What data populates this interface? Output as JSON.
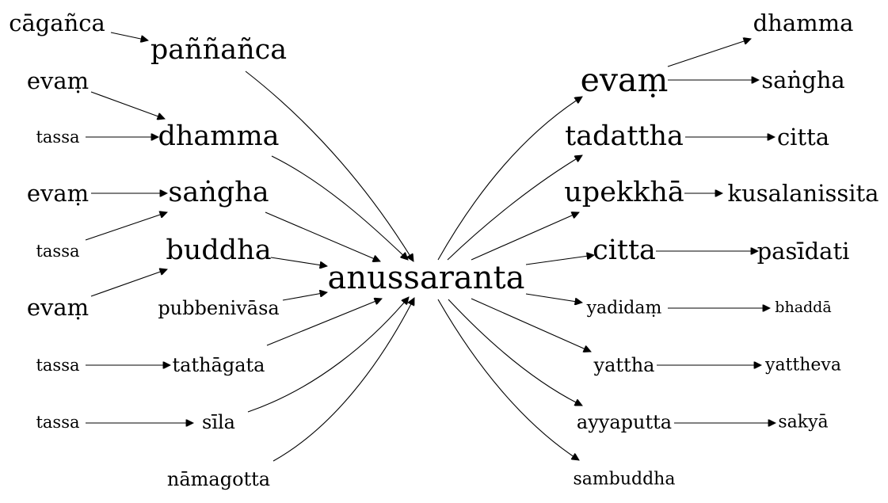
{
  "graph": {
    "nodes": [
      {
        "id": "center",
        "label": "anussaranta"
      },
      {
        "id": "caganca",
        "label": "cāgañca"
      },
      {
        "id": "pannanca",
        "label": "paññañca"
      },
      {
        "id": "l_evam1",
        "label": "evaṃ"
      },
      {
        "id": "l_tassa1",
        "label": "tassa"
      },
      {
        "id": "l_dhamma",
        "label": "dhamma"
      },
      {
        "id": "l_evam2",
        "label": "evaṃ"
      },
      {
        "id": "l_sangha",
        "label": "saṅgha"
      },
      {
        "id": "l_tassa2",
        "label": "tassa"
      },
      {
        "id": "l_buddha",
        "label": "buddha"
      },
      {
        "id": "l_evam3",
        "label": "evaṃ"
      },
      {
        "id": "pubbenivasa",
        "label": "pubbenivāsa"
      },
      {
        "id": "l_tassa3",
        "label": "tassa"
      },
      {
        "id": "tathagata",
        "label": "tathāgata"
      },
      {
        "id": "l_tassa4",
        "label": "tassa"
      },
      {
        "id": "sila",
        "label": "sīla"
      },
      {
        "id": "namagotta",
        "label": "nāmagotta"
      },
      {
        "id": "r_evam",
        "label": "evaṃ"
      },
      {
        "id": "r_dhamma",
        "label": "dhamma"
      },
      {
        "id": "r_sangha",
        "label": "saṅgha"
      },
      {
        "id": "tadattha",
        "label": "tadattha"
      },
      {
        "id": "r_citta1",
        "label": "citta"
      },
      {
        "id": "upekkha",
        "label": "upekkhā"
      },
      {
        "id": "kusalanissita",
        "label": "kusalanissita"
      },
      {
        "id": "r_citta2",
        "label": "citta"
      },
      {
        "id": "pasidati",
        "label": "pasīdati"
      },
      {
        "id": "yadidam",
        "label": "yadidaṃ"
      },
      {
        "id": "bhadda",
        "label": "bhaddā"
      },
      {
        "id": "yattha",
        "label": "yattha"
      },
      {
        "id": "yattheva",
        "label": "yattheva"
      },
      {
        "id": "ayyaputta",
        "label": "ayyaputta"
      },
      {
        "id": "sakya",
        "label": "sakyā"
      },
      {
        "id": "sambuddha",
        "label": "sambuddha"
      }
    ],
    "edges": [
      {
        "from": "caganca",
        "to": "pannanca"
      },
      {
        "from": "pannanca",
        "to": "center"
      },
      {
        "from": "l_evam1",
        "to": "l_dhamma"
      },
      {
        "from": "l_tassa1",
        "to": "l_dhamma"
      },
      {
        "from": "l_dhamma",
        "to": "center"
      },
      {
        "from": "l_evam2",
        "to": "l_sangha"
      },
      {
        "from": "l_tassa2",
        "to": "l_sangha"
      },
      {
        "from": "l_sangha",
        "to": "center"
      },
      {
        "from": "l_evam3",
        "to": "l_buddha"
      },
      {
        "from": "l_buddha",
        "to": "center"
      },
      {
        "from": "pubbenivasa",
        "to": "center"
      },
      {
        "from": "l_tassa3",
        "to": "tathagata"
      },
      {
        "from": "tathagata",
        "to": "center"
      },
      {
        "from": "l_tassa4",
        "to": "sila"
      },
      {
        "from": "sila",
        "to": "center"
      },
      {
        "from": "namagotta",
        "to": "center"
      },
      {
        "from": "center",
        "to": "r_evam"
      },
      {
        "from": "r_evam",
        "to": "r_dhamma"
      },
      {
        "from": "r_evam",
        "to": "r_sangha"
      },
      {
        "from": "center",
        "to": "tadattha"
      },
      {
        "from": "tadattha",
        "to": "r_citta1"
      },
      {
        "from": "center",
        "to": "upekkha"
      },
      {
        "from": "upekkha",
        "to": "kusalanissita"
      },
      {
        "from": "center",
        "to": "r_citta2"
      },
      {
        "from": "r_citta2",
        "to": "pasidati"
      },
      {
        "from": "center",
        "to": "yadidam"
      },
      {
        "from": "yadidam",
        "to": "bhadda"
      },
      {
        "from": "center",
        "to": "yattha"
      },
      {
        "from": "yattha",
        "to": "yattheva"
      },
      {
        "from": "center",
        "to": "ayyaputta"
      },
      {
        "from": "ayyaputta",
        "to": "sakya"
      },
      {
        "from": "center",
        "to": "sambuddha"
      }
    ]
  }
}
